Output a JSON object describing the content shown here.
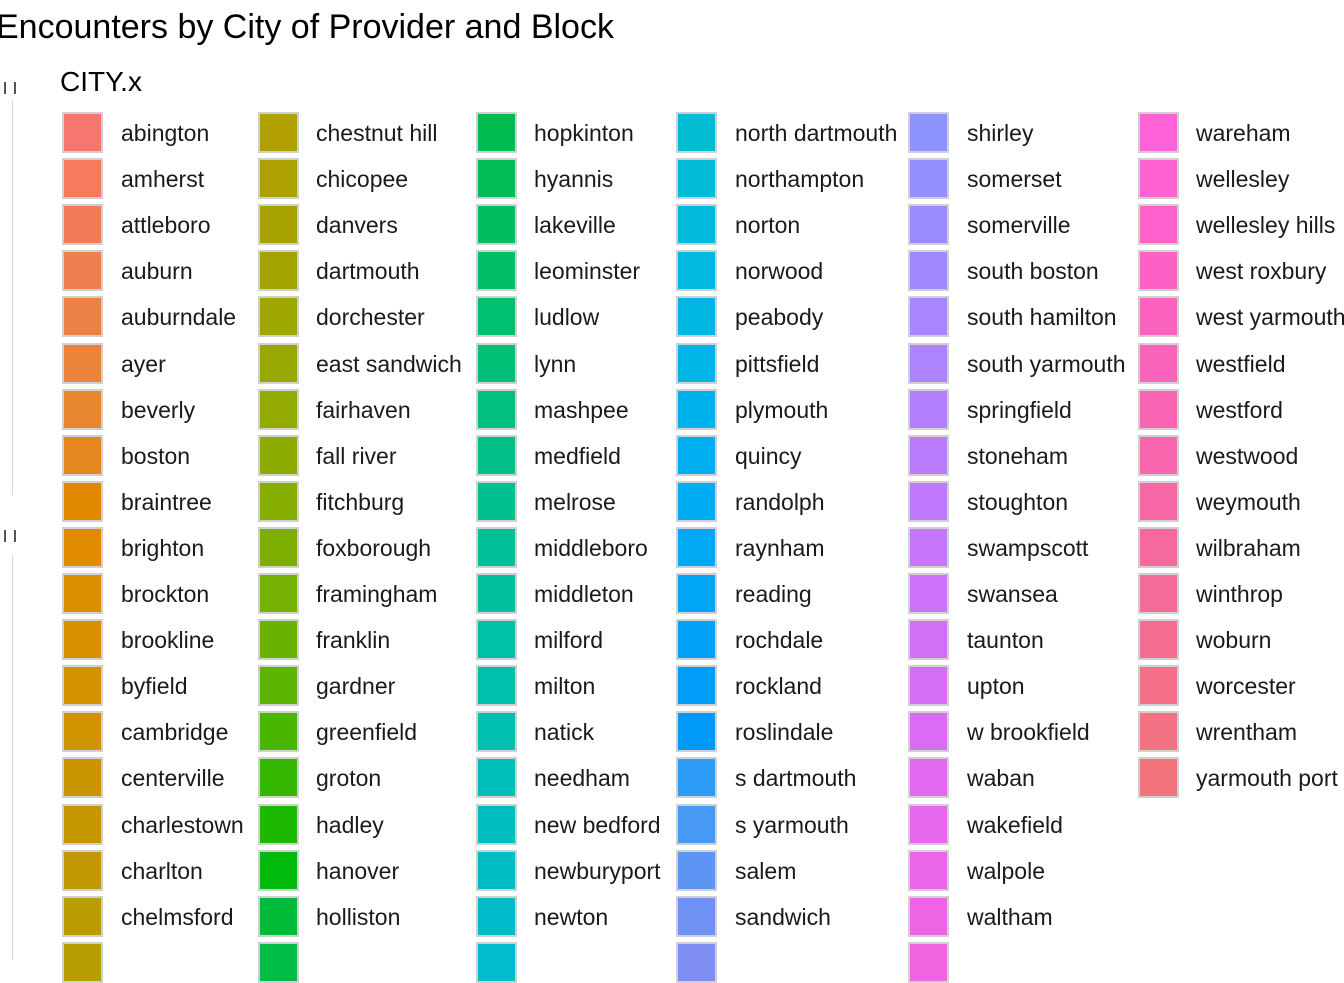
{
  "chart_data": {
    "type": "legend",
    "title": "Encounters by City of Provider and Block",
    "legend_title": "CITY.x",
    "columns": [
      {
        "entries": [
          {
            "label": "abington",
            "color": "#F8766D"
          },
          {
            "label": "amherst",
            "color": "#F57A5F"
          },
          {
            "label": "attleboro",
            "color": "#F27C57"
          },
          {
            "label": "auburn",
            "color": "#EF7F4F"
          },
          {
            "label": "auburndale",
            "color": "#EC8145"
          },
          {
            "label": "ayer",
            "color": "#E9843A"
          },
          {
            "label": "beverly",
            "color": "#E7862D"
          },
          {
            "label": "boston",
            "color": "#E5871F"
          },
          {
            "label": "braintree",
            "color": "#E38900"
          },
          {
            "label": "brighton",
            "color": "#E08B00"
          },
          {
            "label": "brockton",
            "color": "#DC8D00"
          },
          {
            "label": "brookline",
            "color": "#D89000"
          },
          {
            "label": "byfield",
            "color": "#D39200"
          },
          {
            "label": "cambridge",
            "color": "#CF9400"
          },
          {
            "label": "centerville",
            "color": "#CA9600"
          },
          {
            "label": "charlestown",
            "color": "#C59800"
          },
          {
            "label": "charlton",
            "color": "#C09A00"
          },
          {
            "label": "chelmsford",
            "color": "#BB9C00"
          },
          {
            "label": "",
            "color": "#B69E00"
          }
        ]
      },
      {
        "entries": [
          {
            "label": "chestnut hill",
            "color": "#B29F00"
          },
          {
            "label": "chicopee",
            "color": "#ADA100"
          },
          {
            "label": "danvers",
            "color": "#A8A200"
          },
          {
            "label": "dartmouth",
            "color": "#A3A400"
          },
          {
            "label": "dorchester",
            "color": "#9EA600"
          },
          {
            "label": "east sandwich",
            "color": "#99A800"
          },
          {
            "label": "fairhaven",
            "color": "#93AA00"
          },
          {
            "label": "fall river",
            "color": "#8DAC00"
          },
          {
            "label": "fitchburg",
            "color": "#86AE00"
          },
          {
            "label": "foxborough",
            "color": "#7EAF00"
          },
          {
            "label": "framingham",
            "color": "#74B100"
          },
          {
            "label": "franklin",
            "color": "#69B300"
          },
          {
            "label": "gardner",
            "color": "#5CB400"
          },
          {
            "label": "greenfield",
            "color": "#4BB600"
          },
          {
            "label": "groton",
            "color": "#34B700"
          },
          {
            "label": "hadley",
            "color": "#1DB800"
          },
          {
            "label": "hanover",
            "color": "#00BA0E"
          },
          {
            "label": "holliston",
            "color": "#00BB38"
          },
          {
            "label": "",
            "color": "#00BC46"
          }
        ]
      },
      {
        "entries": [
          {
            "label": "hopkinton",
            "color": "#00BC4F"
          },
          {
            "label": "hyannis",
            "color": "#00BD57"
          },
          {
            "label": "lakeville",
            "color": "#00BE5F"
          },
          {
            "label": "leominster",
            "color": "#00BF67"
          },
          {
            "label": "ludlow",
            "color": "#00BF6F"
          },
          {
            "label": "lynn",
            "color": "#00C077"
          },
          {
            "label": "mashpee",
            "color": "#00C07F"
          },
          {
            "label": "medfield",
            "color": "#00C087"
          },
          {
            "label": "melrose",
            "color": "#00C08F"
          },
          {
            "label": "middleboro",
            "color": "#00C097"
          },
          {
            "label": "middleton",
            "color": "#00C09E"
          },
          {
            "label": "milford",
            "color": "#00C0A5"
          },
          {
            "label": "milton",
            "color": "#00BFAC"
          },
          {
            "label": "natick",
            "color": "#00BFB3"
          },
          {
            "label": "needham",
            "color": "#00BEBA"
          },
          {
            "label": "new bedford",
            "color": "#00BEC0"
          },
          {
            "label": "newburyport",
            "color": "#00BDC5"
          },
          {
            "label": "newton",
            "color": "#00BCCA"
          },
          {
            "label": "",
            "color": "#00BCCF"
          }
        ]
      },
      {
        "entries": [
          {
            "label": "north dartmouth",
            "color": "#00BDD2"
          },
          {
            "label": "northampton",
            "color": "#00BCD6"
          },
          {
            "label": "norton",
            "color": "#00BBDB"
          },
          {
            "label": "norwood",
            "color": "#00B9E0"
          },
          {
            "label": "peabody",
            "color": "#00B7E4"
          },
          {
            "label": "pittsfield",
            "color": "#00B5E8"
          },
          {
            "label": "plymouth",
            "color": "#00B2EC"
          },
          {
            "label": "quincy",
            "color": "#00AFEF"
          },
          {
            "label": "randolph",
            "color": "#00ACF2"
          },
          {
            "label": "raynham",
            "color": "#00A9F4"
          },
          {
            "label": "reading",
            "color": "#00A5F6"
          },
          {
            "label": "rochdale",
            "color": "#00A1F7"
          },
          {
            "label": "rockland",
            "color": "#009DF8"
          },
          {
            "label": "roslindale",
            "color": "#0099F8"
          },
          {
            "label": "s dartmouth",
            "color": "#2C9CF6"
          },
          {
            "label": "s yarmouth",
            "color": "#4898F5"
          },
          {
            "label": "salem",
            "color": "#5C95F4"
          },
          {
            "label": "sandwich",
            "color": "#6E92F3"
          },
          {
            "label": "",
            "color": "#7E8EF2"
          }
        ]
      },
      {
        "entries": [
          {
            "label": "shirley",
            "color": "#8B93FF"
          },
          {
            "label": "somerset",
            "color": "#9290FF"
          },
          {
            "label": "somerville",
            "color": "#998CFF"
          },
          {
            "label": "south boston",
            "color": "#A089FF"
          },
          {
            "label": "south hamilton",
            "color": "#A786FF"
          },
          {
            "label": "south yarmouth",
            "color": "#AD83FF"
          },
          {
            "label": "springfield",
            "color": "#B47FFE"
          },
          {
            "label": "stoneham",
            "color": "#BA7CFD"
          },
          {
            "label": "stoughton",
            "color": "#C079FC"
          },
          {
            "label": "swampscott",
            "color": "#C676FB"
          },
          {
            "label": "swansea",
            "color": "#CC73F9"
          },
          {
            "label": "taunton",
            "color": "#D170F7"
          },
          {
            "label": "upton",
            "color": "#D66EF5"
          },
          {
            "label": "w brookfield",
            "color": "#DB6BF2"
          },
          {
            "label": "waban",
            "color": "#E069EF"
          },
          {
            "label": "wakefield",
            "color": "#E567EC"
          },
          {
            "label": "walpole",
            "color": "#E966E8"
          },
          {
            "label": "waltham",
            "color": "#ED65E4"
          },
          {
            "label": "",
            "color": "#F064E0"
          }
        ]
      },
      {
        "entries": [
          {
            "label": "wareham",
            "color": "#FF62D8"
          },
          {
            "label": "wellesley",
            "color": "#FE61D2"
          },
          {
            "label": "wellesley hills",
            "color": "#FD61CC"
          },
          {
            "label": "west roxbury",
            "color": "#FC62C6"
          },
          {
            "label": "west yarmouth",
            "color": "#FB62C0"
          },
          {
            "label": "westfield",
            "color": "#FA63BA"
          },
          {
            "label": "westford",
            "color": "#F964B3"
          },
          {
            "label": "westwood",
            "color": "#F866AD"
          },
          {
            "label": "weymouth",
            "color": "#F767A6"
          },
          {
            "label": "wilbraham",
            "color": "#F6699F"
          },
          {
            "label": "winthrop",
            "color": "#F56B98"
          },
          {
            "label": "woburn",
            "color": "#F46D91"
          },
          {
            "label": "worcester",
            "color": "#F36F8A"
          },
          {
            "label": "wrentham",
            "color": "#F27183"
          },
          {
            "label": "yarmouth port",
            "color": "#F1747C"
          }
        ]
      }
    ]
  }
}
